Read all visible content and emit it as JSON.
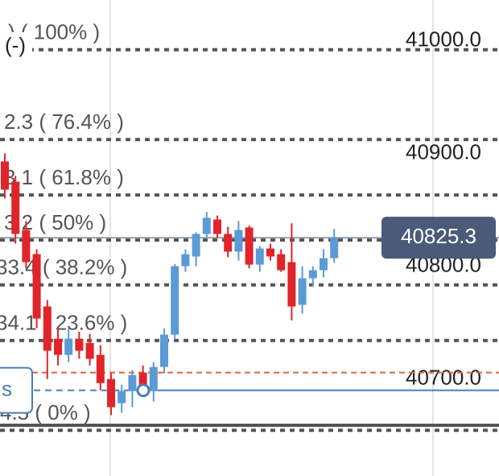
{
  "chart_data": {
    "type": "candlestick",
    "ylim": [
      40614,
      41036
    ],
    "yticks": [
      {
        "value": 41000,
        "label": "41000.0"
      },
      {
        "value": 40900,
        "label": "40900.0"
      },
      {
        "value": 40800,
        "label": "40800.0"
      },
      {
        "value": 40700,
        "label": "40700.0"
      }
    ],
    "last_price": 40825.3,
    "up_color": "#5b9bd5",
    "down_color": "#e0242a",
    "fib_levels": [
      {
        "value": 40991.9,
        "label": ") ( 100% )"
      },
      {
        "value": 40912.3,
        "label": "2.3 ( 76.4% )"
      },
      {
        "value": 40863.1,
        "label": "3.1 ( 61.8% )"
      },
      {
        "value": 40823.2,
        "label": "3.2 ( 50% )"
      },
      {
        "value": 40783.4,
        "label": "33.4 ( 38.2% )"
      },
      {
        "value": 40734.1,
        "label": "34.1 ( 23.6% )"
      },
      {
        "value": 40654.5,
        "label": "4.5 ( 0% )"
      }
    ],
    "order_line": 40705.7,
    "position_line": 40690,
    "toggle_label": "(-)",
    "position_label": "s",
    "open": [
      40892.9,
      40875,
      40832.1,
      40810.7,
      40764.3,
      40735.7,
      40721.4,
      40735.7,
      40732,
      40721.4,
      40700,
      40678.6,
      40689.3,
      40705.7,
      40689.3,
      40710.7,
      40739.3,
      40800,
      40808.6,
      40828.6,
      40841.4,
      40828.6,
      40812.9,
      40834.3,
      40801.4,
      40815.7,
      40810.7,
      40803.6,
      40765.7,
      40789.3,
      40796.4,
      40807.1
    ],
    "high": [
      40900,
      40880,
      40840,
      40815,
      40770,
      40745,
      40745,
      40742,
      40740,
      40730,
      40705,
      40695,
      40708,
      40712,
      40715,
      40745,
      40802,
      40815,
      40830,
      40848,
      40845,
      40835,
      40840,
      40836,
      40818,
      40820,
      40815,
      40838,
      40800,
      40800,
      40815,
      40833
    ],
    "low": [
      40860,
      40820,
      40798,
      40745,
      40700,
      40712,
      40715,
      40718,
      40712,
      40690,
      40668,
      40670,
      40675,
      40685,
      40680,
      40705,
      40735,
      40795,
      40800,
      40825,
      40825,
      40808,
      40805,
      40798,
      40795,
      40805,
      40795,
      40752,
      40758,
      40782,
      40790,
      40803
    ],
    "close": [
      40867.9,
      40828.6,
      40803.6,
      40753.6,
      40725,
      40721.4,
      40735.7,
      40725,
      40717.9,
      40696.4,
      40675,
      40689.3,
      40703.6,
      40694.3,
      40710.7,
      40739.3,
      40800,
      40810.7,
      40828.6,
      40842.9,
      40828.6,
      40812.9,
      40832.1,
      40801.4,
      40815.7,
      40808.6,
      40796.4,
      40764.3,
      40789.3,
      40796.4,
      40807.1,
      40825.3
    ]
  }
}
